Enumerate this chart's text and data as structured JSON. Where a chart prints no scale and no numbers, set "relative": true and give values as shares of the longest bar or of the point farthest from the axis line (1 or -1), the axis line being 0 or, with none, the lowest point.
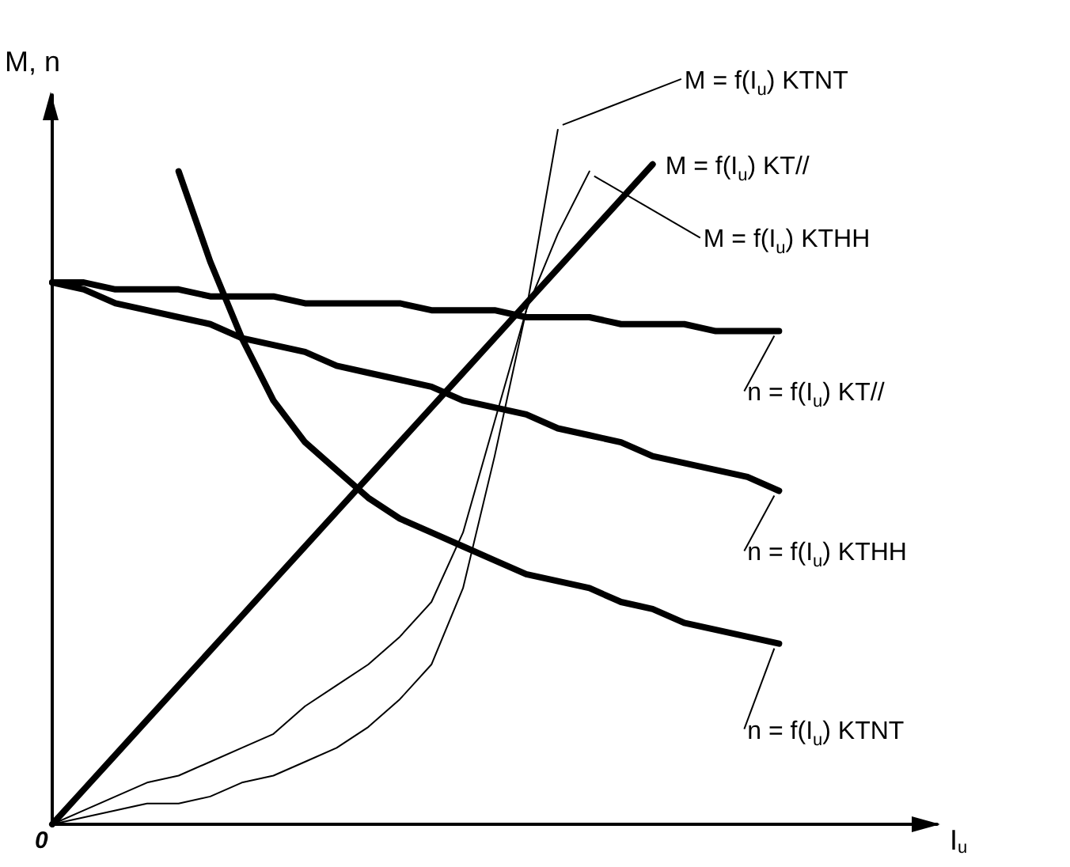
{
  "chart_data": {
    "type": "line",
    "relative": true,
    "ylabel": "M, n",
    "xlabel": "I$_{u}$",
    "annotations": [
      "0"
    ],
    "marker": "none",
    "grid": false,
    "legend": false,
    "categories": [
      null,
      null,
      null,
      null,
      null,
      null,
      null,
      null,
      null,
      null,
      null,
      null,
      null,
      null,
      null,
      null,
      null,
      null,
      null,
      null,
      null,
      null,
      null,
      null,
      null,
      null,
      null,
      null,
      null
    ],
    "series": [
      {
        "name": "M = f(I$_{u}$) KT//",
        "color": "#000000",
        "values": [
          0,
          0.05,
          0.1,
          0.15,
          0.2,
          0.25,
          0.3,
          0.35,
          0.4,
          0.45,
          0.5,
          0.55,
          0.6,
          0.65,
          0.7,
          0.75,
          0.8,
          0.85,
          0.9,
          0.95,
          null,
          null,
          null,
          null,
          null,
          null,
          null,
          null,
          null
        ]
      },
      {
        "name": "M = f(I$_{u}$) KTNT",
        "color": "#000000",
        "values": [
          0,
          0.01,
          0.02,
          0.03,
          0.03,
          0.04,
          0.06,
          0.07,
          0.09,
          0.11,
          0.14,
          0.18,
          0.23,
          0.34,
          0.53,
          0.74,
          1,
          null,
          null,
          null,
          null,
          null,
          null,
          null,
          null,
          null,
          null,
          null,
          null
        ]
      },
      {
        "name": "M = f(I$_{u}$) KTHH",
        "color": "#000000",
        "values": [
          0,
          0.02,
          0.04,
          0.06,
          0.07,
          0.09,
          0.11,
          0.13,
          0.17,
          0.2,
          0.23,
          0.27,
          0.32,
          0.42,
          0.58,
          0.74,
          0.85,
          0.94,
          null,
          null,
          null,
          null,
          null,
          null,
          null,
          null,
          null,
          null,
          null
        ]
      },
      {
        "name": "n = f(I$_{u}$) KT//",
        "color": "#000000",
        "values": [
          0.78,
          0.78,
          0.77,
          0.77,
          0.77,
          0.76,
          0.76,
          0.76,
          0.75,
          0.75,
          0.75,
          0.75,
          0.74,
          0.74,
          0.74,
          0.73,
          0.73,
          0.73,
          0.72,
          0.72,
          0.72,
          0.71,
          0.71,
          0.71,
          null,
          null,
          null,
          null,
          null
        ]
      },
      {
        "name": "n = f(I$_{u}$) KTHH",
        "color": "#000000",
        "values": [
          0.78,
          0.77,
          0.75,
          0.74,
          0.73,
          0.72,
          0.7,
          0.69,
          0.68,
          0.66,
          0.65,
          0.64,
          0.63,
          0.61,
          0.6,
          0.59,
          0.57,
          0.56,
          0.55,
          0.53,
          0.52,
          0.51,
          0.5,
          0.48,
          null,
          null,
          null,
          null,
          null
        ]
      },
      {
        "name": "n = f(I$_{u}$) KTNT",
        "color": "#000000",
        "values": [
          null,
          null,
          null,
          null,
          0.94,
          0.81,
          0.7,
          0.61,
          0.55,
          0.51,
          0.47,
          0.44,
          0.42,
          0.4,
          0.38,
          0.36,
          0.35,
          0.34,
          0.32,
          0.31,
          0.29,
          0.28,
          0.27,
          0.26,
          null,
          null,
          null,
          null,
          null
        ]
      }
    ]
  }
}
